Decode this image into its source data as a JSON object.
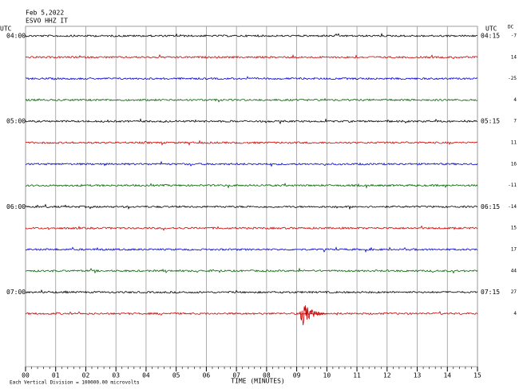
{
  "chart_data": {
    "type": "helicorder",
    "title": "Feb 5,2022",
    "subtitle": "ESVO HHZ IT",
    "left_axis_label": "UTC",
    "right_axis_label": "UTC",
    "dc_label": "DC",
    "x_label": "TIME (MINUTES)",
    "note": "Each Vertical Division = 100000.00 microvolts",
    "xlim": [
      0,
      15
    ],
    "xticks": [
      {
        "value": 0,
        "label": "00"
      },
      {
        "value": 1,
        "label": "01"
      },
      {
        "value": 2,
        "label": "02"
      },
      {
        "value": 3,
        "label": "03"
      },
      {
        "value": 4,
        "label": "04"
      },
      {
        "value": 5,
        "label": "05"
      },
      {
        "value": 6,
        "label": "06"
      },
      {
        "value": 7,
        "label": "07"
      },
      {
        "value": 8,
        "label": "08"
      },
      {
        "value": 9,
        "label": "09"
      },
      {
        "value": 10,
        "label": "10"
      },
      {
        "value": 11,
        "label": "11"
      },
      {
        "value": 12,
        "label": "12"
      },
      {
        "value": 13,
        "label": "13"
      },
      {
        "value": 14,
        "label": "14"
      },
      {
        "value": 15,
        "label": "15"
      }
    ],
    "grid": true,
    "rows": [
      {
        "left": "04:00",
        "right": "04:15",
        "dc": -7,
        "color": "#000000"
      },
      {
        "left": null,
        "right": null,
        "dc": 14,
        "color": "#cc0000"
      },
      {
        "left": null,
        "right": null,
        "dc": -25,
        "color": "#0000cc"
      },
      {
        "left": null,
        "right": null,
        "dc": 4,
        "color": "#006600"
      },
      {
        "left": "05:00",
        "right": "05:15",
        "dc": 7,
        "color": "#000000"
      },
      {
        "left": null,
        "right": null,
        "dc": 11,
        "color": "#cc0000"
      },
      {
        "left": null,
        "right": null,
        "dc": 16,
        "color": "#0000cc"
      },
      {
        "left": null,
        "right": null,
        "dc": -11,
        "color": "#006600"
      },
      {
        "left": "06:00",
        "right": "06:15",
        "dc": -14,
        "color": "#000000"
      },
      {
        "left": null,
        "right": null,
        "dc": 15,
        "color": "#cc0000"
      },
      {
        "left": null,
        "right": null,
        "dc": 17,
        "color": "#0000cc"
      },
      {
        "left": null,
        "right": null,
        "dc": 44,
        "color": "#006600"
      },
      {
        "left": "07:00",
        "right": "07:15",
        "dc": 27,
        "color": "#000000"
      },
      {
        "left": null,
        "right": null,
        "dc": 4,
        "color": "#cc0000",
        "event": [
          9.1,
          10.0
        ]
      }
    ]
  }
}
